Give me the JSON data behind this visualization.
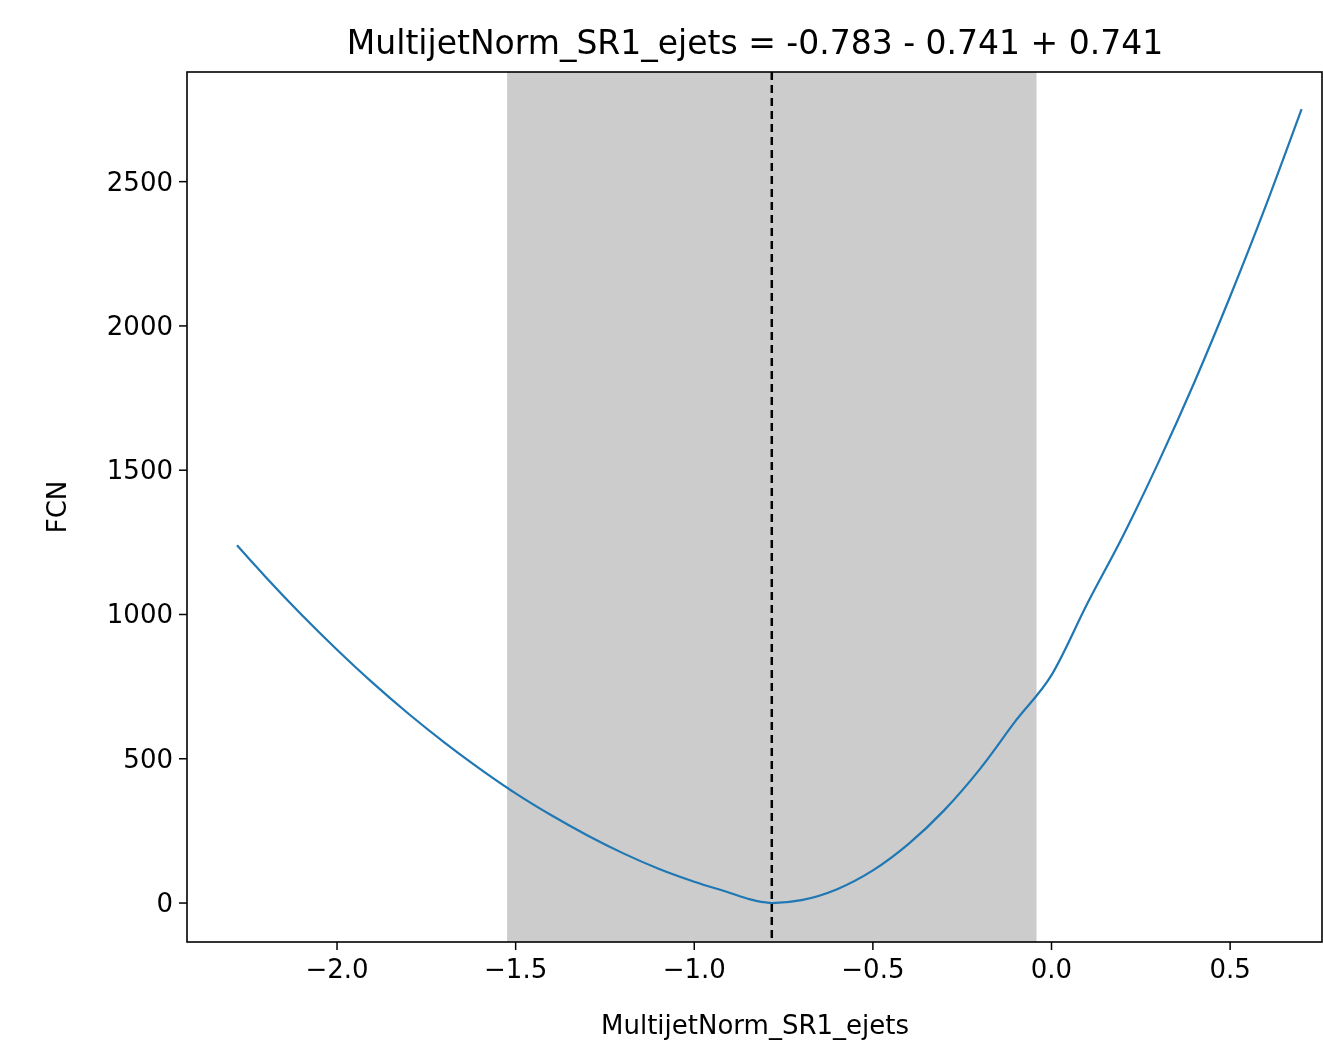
{
  "chart_data": {
    "type": "line",
    "title": "MultijetNorm_SR1_ejets = -0.783 - 0.741 + 0.741",
    "xlabel": "MultijetNorm_SR1_ejets",
    "ylabel": "FCN",
    "xlim": [
      -2.42,
      0.76
    ],
    "ylim": [
      -135,
      2880
    ],
    "xticks": [
      {
        "value": -2,
        "label": "−2.0"
      },
      {
        "value": -1.5,
        "label": "−1.5"
      },
      {
        "value": -1,
        "label": "−1.0"
      },
      {
        "value": -0.5,
        "label": "−0.5"
      },
      {
        "value": 0,
        "label": "0.0"
      },
      {
        "value": 0.5,
        "label": "0.5"
      }
    ],
    "yticks": [
      0,
      500,
      1000,
      1500,
      2000,
      2500
    ],
    "series": [
      {
        "color": "#1f77b4",
        "x": [
          -2.28,
          -2.2,
          -2.1,
          -2.0,
          -1.9,
          -1.8,
          -1.7,
          -1.6,
          -1.5,
          -1.4,
          -1.3,
          -1.2,
          -1.1,
          -1.0,
          -0.9,
          -0.85,
          -0.783,
          -0.7,
          -0.6,
          -0.5,
          -0.4,
          -0.3,
          -0.2,
          -0.1,
          0.0,
          0.1,
          0.2,
          0.3,
          0.4,
          0.5,
          0.6,
          0.7
        ],
        "values": [
          1240,
          1130,
          1000,
          878,
          763,
          656,
          557,
          465,
          380,
          304,
          235,
          173,
          119,
          74,
          35,
          15,
          0,
          10,
          48,
          113,
          205,
          322,
          465,
          632,
          790,
          1037,
          1272,
          1529,
          1805,
          2102,
          2417,
          2751
        ]
      }
    ],
    "bands": [
      {
        "axis": "x",
        "from": -1.524,
        "to": -0.042,
        "color": "#cccccc"
      }
    ],
    "ref_lines": [
      {
        "axis": "x",
        "value": -0.783,
        "color": "#000000",
        "line_style": "dashed"
      }
    ],
    "line_style": "solid",
    "marker": "none",
    "grid": false
  }
}
